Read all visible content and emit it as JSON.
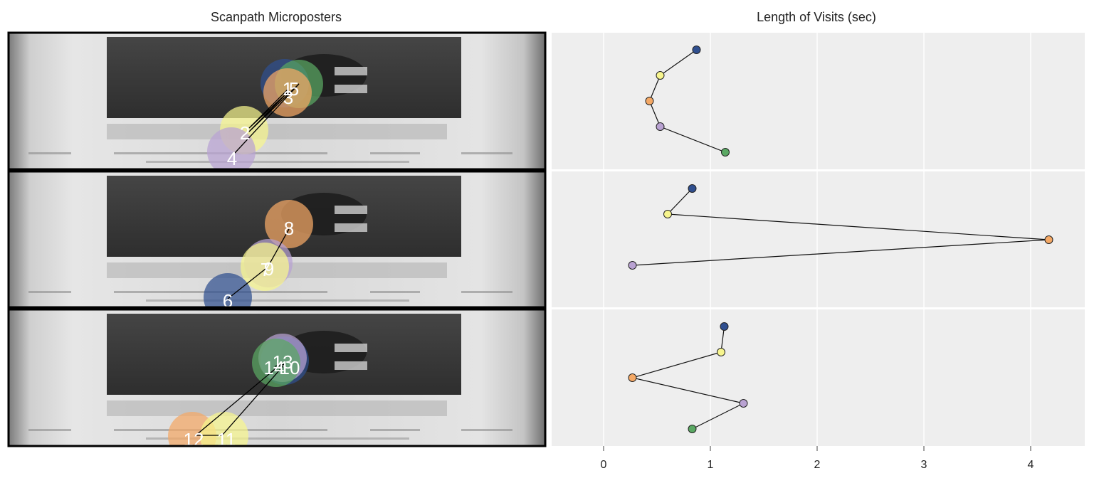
{
  "titles": {
    "left": "Scanpath Microposters",
    "right": "Length of Visits (sec)"
  },
  "colors": {
    "panel_bg": "#eeeeee",
    "grid": "#ffffff",
    "line": "#111111",
    "fixations": [
      "#2f4f8f",
      "#f7f58e",
      "#f4a865",
      "#b9a2d2",
      "#5aa863"
    ]
  },
  "chart_data": {
    "type": "line",
    "title": "Length of Visits (sec)",
    "xlabel": "",
    "ylabel": "",
    "xlim": [
      -0.5,
      4.5
    ],
    "xticks": [
      "0",
      "1",
      "2",
      "3",
      "4"
    ],
    "grid": true,
    "orientation": "horizontal (x = duration, rows = fixation order)",
    "panels": [
      {
        "name": "",
        "fixation_labels": [
          "",
          "2",
          "3",
          "4",
          "5"
        ],
        "durations": [
          0.87,
          0.53,
          0.43,
          0.53,
          1.14
        ],
        "colors": [
          "#2f4f8f",
          "#f7f58e",
          "#f4a865",
          "#b9a2d2",
          "#5aa863"
        ]
      },
      {
        "name": "",
        "fixation_labels": [
          "6",
          "7",
          "8",
          "9"
        ],
        "durations": [
          0.83,
          0.6,
          4.17,
          0.27
        ],
        "colors": [
          "#2f4f8f",
          "#f7f58e",
          "#f4a865",
          "#b9a2d2"
        ]
      },
      {
        "name": "",
        "fixation_labels": [
          "10",
          "11",
          "12",
          "13",
          "14"
        ],
        "durations": [
          1.13,
          1.1,
          0.27,
          1.31,
          0.83
        ],
        "colors": [
          "#2f4f8f",
          "#f7f58e",
          "#f4a865",
          "#b9a2d2",
          "#5aa863"
        ]
      }
    ]
  },
  "microposters": [
    {
      "label_texts": [
        "1",
        "5",
        "3",
        "2",
        "4"
      ],
      "colors": [
        "#2f4f8f",
        "#5aa863",
        "#f4a865",
        "#f7f58e",
        "#b9a2d2"
      ]
    },
    {
      "label_texts": [
        "8",
        "9",
        "7",
        "6"
      ],
      "colors": [
        "#f4a865",
        "#b9a2d2",
        "#f7f58e",
        "#2f4f8f"
      ]
    },
    {
      "label_texts": [
        "10",
        "13",
        "14",
        "12",
        "11"
      ],
      "colors": [
        "#2f4f8f",
        "#b9a2d2",
        "#5aa863",
        "#f4a865",
        "#f7f58e"
      ]
    }
  ]
}
